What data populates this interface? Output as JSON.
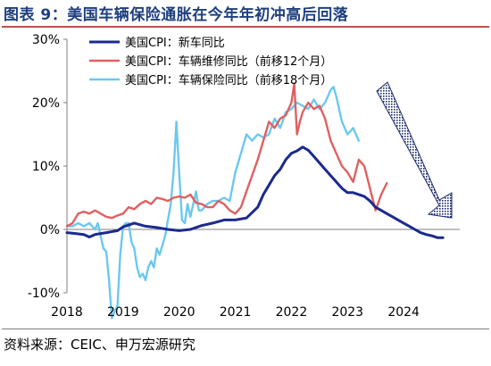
{
  "header": {
    "title": "图表 9：美国车辆保险通胀在今年年初冲高后回落"
  },
  "footer": {
    "source": "资料来源：CEIC、申万宏源研究"
  },
  "colors": {
    "new_vehicles": "#1b2a8c",
    "repair": "#e06060",
    "insurance": "#6cc8ee",
    "axis": "#7f7f7f",
    "arrow": "#1b2a6c"
  },
  "chart_data": {
    "type": "line",
    "ylim": [
      -10,
      30
    ],
    "yticks": [
      30,
      20,
      10,
      0,
      -10
    ],
    "ytick_labels": [
      "30%",
      "20%",
      "10%",
      "0%",
      "-10%"
    ],
    "xlim": [
      2018.0,
      2025.0
    ],
    "xticks": [
      2018,
      2019,
      2020,
      2021,
      2022,
      2023,
      2024
    ],
    "xtick_labels": [
      "2018",
      "2019",
      "2020",
      "2021",
      "2022",
      "2023",
      "2024"
    ],
    "legend_position": "top",
    "annotation": "downward trend arrow (upper right)",
    "series": [
      {
        "name": "美国CPI：新车同比",
        "color": "#1b2a8c",
        "x": [
          2018.0,
          2018.1,
          2018.2,
          2018.3,
          2018.4,
          2018.5,
          2018.7,
          2018.9,
          2019.0,
          2019.2,
          2019.4,
          2019.6,
          2019.8,
          2020.0,
          2020.2,
          2020.4,
          2020.6,
          2020.8,
          2021.0,
          2021.2,
          2021.4,
          2021.5,
          2021.6,
          2021.7,
          2021.8,
          2021.9,
          2022.0,
          2022.1,
          2022.2,
          2022.3,
          2022.4,
          2022.5,
          2022.6,
          2022.7,
          2022.8,
          2022.9,
          2023.0,
          2023.1,
          2023.2,
          2023.3,
          2023.4,
          2023.5,
          2023.6,
          2023.7,
          2023.8,
          2023.9,
          2024.0,
          2024.1,
          2024.2,
          2024.3,
          2024.4,
          2024.5,
          2024.6,
          2024.7
        ],
        "y": [
          -0.5,
          -0.6,
          -0.7,
          -0.8,
          -1.2,
          -0.8,
          -0.5,
          -0.2,
          0.4,
          1.0,
          0.5,
          0.3,
          0.0,
          -0.2,
          0.0,
          0.6,
          1.0,
          1.5,
          1.5,
          1.8,
          3.5,
          5.5,
          7.0,
          8.5,
          9.5,
          11.0,
          12.0,
          12.4,
          13.0,
          12.5,
          11.5,
          10.5,
          9.5,
          8.5,
          7.5,
          6.5,
          5.8,
          5.8,
          5.5,
          5.2,
          4.5,
          3.5,
          3.0,
          2.5,
          2.0,
          1.5,
          1.0,
          0.5,
          0.0,
          -0.5,
          -0.8,
          -1.0,
          -1.3,
          -1.3
        ]
      },
      {
        "name": "美国CPI：车辆维修同比（前移12个月）",
        "color": "#e06060",
        "x": [
          2018.0,
          2018.1,
          2018.2,
          2018.3,
          2018.4,
          2018.5,
          2018.6,
          2018.7,
          2018.8,
          2018.9,
          2019.0,
          2019.1,
          2019.2,
          2019.3,
          2019.4,
          2019.5,
          2019.6,
          2019.7,
          2019.8,
          2019.9,
          2020.0,
          2020.1,
          2020.2,
          2020.3,
          2020.4,
          2020.5,
          2020.6,
          2020.7,
          2020.8,
          2020.9,
          2021.0,
          2021.1,
          2021.2,
          2021.3,
          2021.4,
          2021.5,
          2021.6,
          2021.7,
          2021.8,
          2021.9,
          2022.0,
          2022.05,
          2022.1,
          2022.15,
          2022.2,
          2022.3,
          2022.4,
          2022.5,
          2022.6,
          2022.7,
          2022.8,
          2022.9,
          2023.0,
          2023.1,
          2023.2,
          2023.3,
          2023.4,
          2023.5,
          2023.6,
          2023.7
        ],
        "y": [
          0.5,
          1.0,
          2.5,
          2.8,
          2.5,
          3.0,
          2.5,
          2.0,
          1.8,
          2.2,
          2.5,
          3.5,
          3.2,
          4.0,
          4.5,
          4.0,
          5.0,
          4.8,
          4.5,
          5.0,
          5.2,
          5.0,
          5.5,
          4.2,
          4.0,
          3.5,
          3.5,
          4.5,
          4.0,
          3.0,
          2.5,
          3.5,
          6.0,
          8.5,
          11.0,
          14.0,
          17.0,
          16.0,
          17.5,
          18.0,
          20.0,
          23.0,
          15.0,
          17.0,
          18.5,
          20.0,
          19.0,
          19.5,
          17.5,
          14.0,
          12.0,
          10.0,
          9.0,
          7.5,
          11.0,
          10.0,
          6.5,
          3.0,
          5.5,
          7.3
        ]
      },
      {
        "name": "美国CPI：车辆保险同比（前移18个月）",
        "color": "#6cc8ee",
        "x": [
          2018.0,
          2018.1,
          2018.2,
          2018.3,
          2018.4,
          2018.5,
          2018.55,
          2018.6,
          2018.65,
          2018.7,
          2018.75,
          2018.8,
          2018.85,
          2018.9,
          2018.95,
          2019.0,
          2019.05,
          2019.1,
          2019.15,
          2019.2,
          2019.25,
          2019.3,
          2019.35,
          2019.4,
          2019.45,
          2019.5,
          2019.55,
          2019.6,
          2019.65,
          2019.7,
          2019.75,
          2019.8,
          2019.85,
          2019.9,
          2019.95,
          2020.0,
          2020.05,
          2020.1,
          2020.15,
          2020.2,
          2020.3,
          2020.35,
          2020.4,
          2020.5,
          2020.6,
          2020.7,
          2020.8,
          2020.9,
          2021.0,
          2021.1,
          2021.2,
          2021.3,
          2021.4,
          2021.5,
          2021.6,
          2021.7,
          2021.8,
          2021.9,
          2022.0,
          2022.1,
          2022.2,
          2022.3,
          2022.4,
          2022.5,
          2022.6,
          2022.7,
          2022.75,
          2022.8,
          2022.9,
          2023.0,
          2023.1,
          2023.2
        ],
        "y": [
          0.5,
          0.5,
          1.0,
          0.5,
          1.0,
          0.0,
          1.0,
          -1.0,
          -3.0,
          -3.5,
          -8.0,
          -14.0,
          -13.0,
          -12.0,
          -4.0,
          0.5,
          1.0,
          1.0,
          -2.0,
          -3.0,
          -6.0,
          -7.5,
          -7.0,
          -8.0,
          -6.0,
          -5.0,
          -6.0,
          -3.0,
          -4.0,
          -2.5,
          -1.0,
          1.5,
          4.0,
          9.0,
          17.0,
          9.0,
          1.5,
          1.0,
          4.0,
          2.0,
          6.0,
          3.0,
          3.0,
          4.0,
          4.5,
          4.5,
          5.0,
          4.5,
          9.0,
          12.0,
          15.0,
          14.0,
          15.0,
          14.5,
          15.0,
          17.5,
          16.0,
          18.5,
          19.0,
          20.0,
          19.5,
          19.0,
          20.5,
          19.0,
          20.0,
          22.0,
          22.5,
          21.0,
          17.0,
          15.0,
          16.0,
          14.0
        ]
      }
    ]
  }
}
